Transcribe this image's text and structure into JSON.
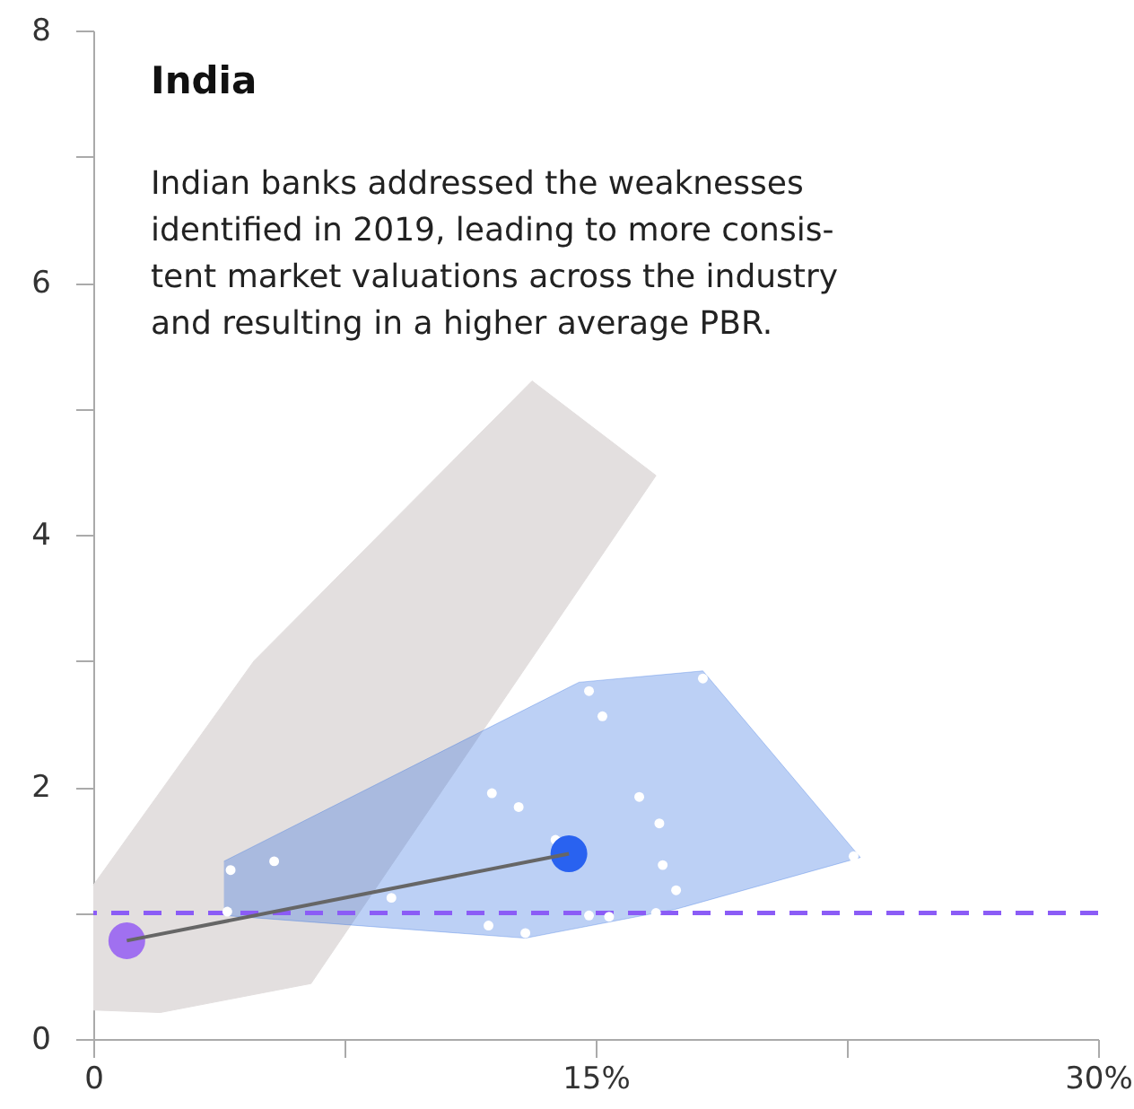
{
  "chart_data": {
    "type": "scatter",
    "title": "India",
    "subtitle": "Indian banks addressed the weaknesses\nidentified in 2019, leading to more consis-\ntent market valuations across the industry\nand resulting in a higher average PBR.",
    "xlim": [
      0,
      30
    ],
    "xticks": [
      0,
      {
        "value": 7.5,
        "label": null
      },
      {
        "value": 15,
        "label": "15%"
      },
      {
        "value": 22.5,
        "label": null
      },
      {
        "value": 30,
        "label": "30%"
      }
    ],
    "ylim": [
      0,
      8
    ],
    "yticks": [
      0,
      {
        "value": 1,
        "label": null
      },
      2,
      {
        "value": 3,
        "label": null
      },
      4,
      {
        "value": 5,
        "label": null
      },
      6,
      {
        "value": 7,
        "label": null
      },
      8
    ],
    "grid": false,
    "ref_lines": [
      {
        "axis": "y",
        "value": 1,
        "color": "#8b5cf6",
        "line_style": "dashed"
      }
    ],
    "series": [
      {
        "type": "area",
        "color": "#e3dfdf",
        "x": [
          0,
          4.8,
          13.1,
          16.8,
          6.5,
          2.0,
          0
        ],
        "values": [
          1.22,
          3.0,
          5.22,
          4.47,
          0.44,
          0.21,
          0.23
        ]
      },
      {
        "type": "area",
        "color": "#2e6ce0",
        "x": [
          3.9,
          14.5,
          18.2,
          22.9,
          17.4,
          12.9,
          3.9
        ],
        "values": [
          1.41,
          2.83,
          2.92,
          1.44,
          1.03,
          0.8,
          0.98
        ]
      },
      {
        "type": "scatter",
        "color": "#ffffff",
        "x": [
          4.1,
          5.4,
          4.0,
          8.9,
          11.9,
          12.7,
          11.8,
          12.9,
          13.8,
          14.8,
          15.2,
          16.3,
          16.9,
          17.0,
          17.4,
          14.8,
          15.4,
          16.8,
          18.2,
          22.7
        ],
        "values": [
          1.34,
          1.41,
          1.01,
          1.12,
          1.95,
          1.84,
          0.9,
          0.84,
          1.58,
          2.76,
          2.56,
          1.92,
          1.71,
          1.38,
          1.18,
          0.98,
          0.97,
          1.0,
          2.86,
          1.45
        ]
      },
      {
        "type": "line",
        "line_style": "solid",
        "color": "#666666",
        "x": [
          1.0,
          14.2
        ],
        "values": [
          0.78,
          1.47
        ]
      },
      {
        "type": "scatter",
        "colors": [
          "#a070f0",
          "#2962f0"
        ],
        "x": [
          1.0,
          14.2
        ],
        "values": [
          0.78,
          1.47
        ]
      }
    ]
  }
}
